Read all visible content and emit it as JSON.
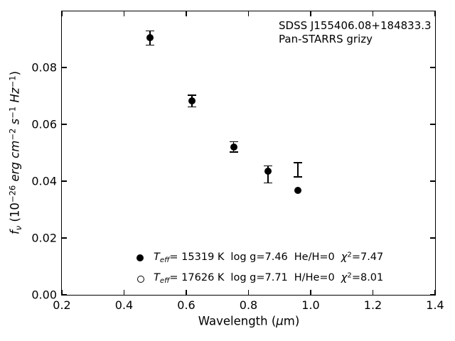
{
  "figure": {
    "background": "#ffffff",
    "ink_color": "#000000",
    "annotation": {
      "line1": "SDSS J155406.08+184833.3",
      "line2": "Pan-STARRS grizy"
    },
    "xlabel": {
      "prefix": "Wavelength (",
      "mu": "μ",
      "suffix": "m)"
    },
    "ylabel": {
      "f": "f",
      "nu": "ν",
      "p1": " (10",
      "e1": "−26",
      "p2": " erg cm",
      "e2": "−2",
      "p3": " s",
      "e3": "−1",
      "p4": " Hz",
      "e4": "−1",
      "p5": ")"
    }
  },
  "chart_data": {
    "type": "scatter",
    "title": "",
    "xlabel": "Wavelength (μm)",
    "ylabel": "f_nu (10^-26 erg cm^-2 s^-1 Hz^-1)",
    "xlim": [
      0.2,
      1.4
    ],
    "ylim": [
      0,
      0.09975
    ],
    "xticks": [
      "0.2",
      "0.4",
      "0.6",
      "0.8",
      "1.0",
      "1.2",
      "1.4"
    ],
    "yticks": [
      "0.00",
      "0.02",
      "0.04",
      "0.06",
      "0.08"
    ],
    "grid": false,
    "legend_position": "lower-center-left, no frame",
    "series": [
      {
        "name": "observed-photometry-errorbars",
        "style": "errorbar",
        "color": "#000000",
        "points": [
          {
            "band": "g",
            "x": 0.483,
            "y": 0.0904,
            "yerr": 0.0025
          },
          {
            "band": "r",
            "x": 0.618,
            "y": 0.0682,
            "yerr": 0.0021
          },
          {
            "band": "i",
            "x": 0.752,
            "y": 0.0521,
            "yerr": 0.0018
          },
          {
            "band": "z",
            "x": 0.863,
            "y": 0.0424,
            "yerr": 0.003
          },
          {
            "band": "y",
            "x": 0.959,
            "y": 0.044,
            "yerr": 0.0025
          }
        ]
      },
      {
        "name": "model-synthetic-photometry-filled",
        "style": "filled-circle",
        "color": "#000000",
        "points": [
          {
            "band": "g",
            "x": 0.483,
            "y": 0.0904
          },
          {
            "band": "r",
            "x": 0.618,
            "y": 0.0682
          },
          {
            "band": "i",
            "x": 0.752,
            "y": 0.0521
          },
          {
            "band": "z",
            "x": 0.863,
            "y": 0.0436
          },
          {
            "band": "y",
            "x": 0.959,
            "y": 0.0367
          }
        ]
      }
    ],
    "legend": [
      {
        "marker": "filled-circle",
        "T": "T",
        "T_sub": "eff",
        "temp": "= 15319 K",
        "logg": "log g=7.46",
        "ratio": "He/H=0",
        "chi": "χ",
        "chi_exp": "2",
        "chi_val": "=7.47"
      },
      {
        "marker": "open-circle",
        "T": "T",
        "T_sub": "eff",
        "temp": "= 17626 K",
        "logg": "log g=7.71",
        "ratio": "H/He=0",
        "chi": "χ",
        "chi_exp": "2",
        "chi_val": "=8.01"
      }
    ]
  }
}
